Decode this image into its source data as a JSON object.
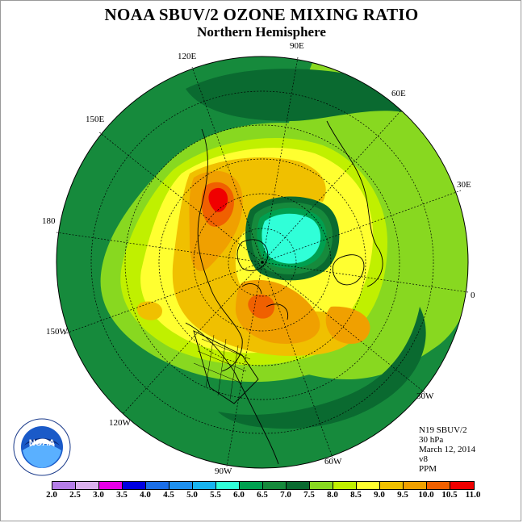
{
  "title": "NOAA SBUV/2 OZONE MIXING RATIO",
  "subtitle": "Northern Hemisphere",
  "longitude_labels": [
    {
      "id": "lon-90e",
      "text": "90E"
    },
    {
      "id": "lon-120e",
      "text": "120E"
    },
    {
      "id": "lon-60e",
      "text": "60E"
    },
    {
      "id": "lon-150e",
      "text": "150E"
    },
    {
      "id": "lon-30e",
      "text": "30E"
    },
    {
      "id": "lon-180",
      "text": "180"
    },
    {
      "id": "lon-0",
      "text": "0"
    },
    {
      "id": "lon-150w",
      "text": "150W"
    },
    {
      "id": "lon-30w",
      "text": "30W"
    },
    {
      "id": "lon-120w",
      "text": "120W"
    },
    {
      "id": "lon-60w",
      "text": "60W"
    },
    {
      "id": "lon-90w",
      "text": "90W"
    }
  ],
  "info": {
    "satellite": "N19 SBUV/2",
    "level": "30 hPa",
    "date": "March 12, 2014",
    "version": "v8",
    "units": "PPM"
  },
  "colorbar": {
    "labels": [
      "2.0",
      "2.5",
      "3.0",
      "3.5",
      "4.0",
      "4.5",
      "5.0",
      "5.5",
      "6.0",
      "6.5",
      "7.0",
      "7.5",
      "8.0",
      "8.5",
      "9.0",
      "9.5",
      "10.0",
      "10.5",
      "11.0"
    ],
    "colors": [
      "#b57ee8",
      "#dcb1ee",
      "#e800e8",
      "#0000e0",
      "#1a6ee8",
      "#1e90f0",
      "#18b4f0",
      "#30ffd8",
      "#00a050",
      "#168a3c",
      "#0a6a30",
      "#88d820",
      "#c0f000",
      "#ffff30",
      "#f0c000",
      "#f0a000",
      "#f06000",
      "#f00000",
      "#8a5030"
    ]
  },
  "legend_colors": {
    "c60": "#00a050",
    "c65": "#168a3c",
    "c70": "#0a6a30",
    "c75": "#88d820",
    "c80": "#c0f000",
    "c85": "#ffff30",
    "c90": "#f0c000",
    "c95": "#f0a000",
    "c100": "#f06000",
    "c105": "#f00000",
    "c55": "#30ffd8",
    "c50": "#18b4f0"
  },
  "logo_text": "NOAA"
}
